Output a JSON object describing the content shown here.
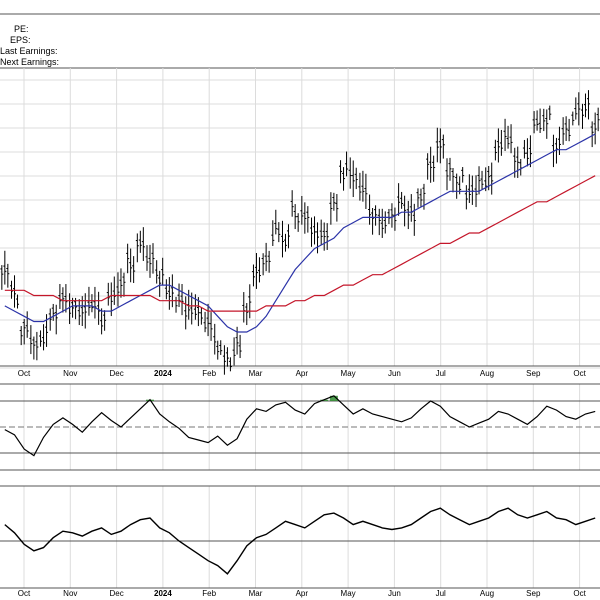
{
  "header": {
    "pe_label": "PE:",
    "eps_label": "EPS:",
    "last_earnings_label": "Last Earnings:",
    "next_earnings_label": "Next Earnings:"
  },
  "colors": {
    "price_bars": "#000000",
    "ma_short": "#2b33a8",
    "ma_long": "#c4162a",
    "grid": "#dcdcdc",
    "frame": "#555555",
    "osc_line": "#000000",
    "osc_overbought_fill": "#2e8b2e"
  },
  "chart_data": [
    {
      "type": "line",
      "panel": "price",
      "style": "ohlc bars with two moving averages",
      "x_tick_labels": [
        "Oct",
        "Nov",
        "Dec",
        "2024",
        "Feb",
        "Mar",
        "Apr",
        "May",
        "Jun",
        "Jul",
        "Aug",
        "Sep",
        "Oct"
      ],
      "ylim": [
        0,
        100
      ],
      "y_axis_labels_visible": false,
      "grid": true,
      "price_closes": [
        70,
        64,
        58,
        55,
        56,
        60,
        63,
        62,
        61,
        62,
        60,
        63,
        66,
        70,
        73,
        71,
        67,
        65,
        62,
        61,
        60,
        58,
        55,
        52,
        54,
        62,
        68,
        72,
        76,
        75,
        80,
        79,
        77,
        76,
        82,
        88,
        86,
        83,
        80,
        78,
        79,
        81,
        80,
        84,
        89,
        92,
        88,
        86,
        84,
        85,
        86,
        93,
        94,
        90,
        92,
        96,
        98,
        93,
        96,
        99,
        100,
        97
      ],
      "series": [
        {
          "name": "",
          "color": "#2b33a8",
          "values": [
            62,
            61,
            60,
            59,
            59,
            60,
            61,
            62,
            62,
            62,
            61,
            61,
            62,
            63,
            64,
            65,
            66,
            66,
            65,
            64,
            63,
            62,
            60,
            58,
            57,
            57,
            58,
            60,
            63,
            66,
            69,
            71,
            73,
            74,
            75,
            77,
            78,
            79,
            79,
            79,
            79,
            80,
            80,
            81,
            82,
            83,
            84,
            84,
            84,
            84,
            85,
            86,
            87,
            88,
            89,
            90,
            91,
            92,
            92,
            93,
            94,
            95
          ]
        },
        {
          "name": "",
          "color": "#c4162a",
          "values": [
            65,
            65,
            65,
            64,
            64,
            64,
            63,
            63,
            63,
            63,
            63,
            64,
            64,
            64,
            64,
            64,
            63,
            63,
            63,
            62,
            62,
            61,
            61,
            61,
            61,
            61,
            61,
            62,
            62,
            62,
            63,
            63,
            64,
            64,
            65,
            66,
            66,
            67,
            68,
            68,
            69,
            70,
            71,
            72,
            73,
            74,
            74,
            75,
            76,
            76,
            77,
            78,
            79,
            80,
            81,
            82,
            82,
            83,
            84,
            85,
            86,
            87
          ]
        }
      ]
    },
    {
      "type": "line",
      "panel": "oscillator",
      "ylim": [
        0,
        100
      ],
      "reference_lines": [
        30,
        50,
        70
      ],
      "series": [
        {
          "name": "",
          "color": "#000000",
          "values": [
            48,
            44,
            33,
            28,
            42,
            52,
            57,
            52,
            46,
            54,
            61,
            55,
            50,
            57,
            64,
            71,
            60,
            54,
            49,
            42,
            40,
            38,
            43,
            36,
            41,
            56,
            64,
            62,
            67,
            69,
            63,
            60,
            68,
            71,
            74,
            67,
            60,
            64,
            60,
            58,
            56,
            54,
            57,
            64,
            70,
            66,
            58,
            54,
            50,
            53,
            56,
            62,
            60,
            56,
            52,
            58,
            66,
            63,
            58,
            56,
            60,
            62
          ]
        }
      ]
    },
    {
      "type": "line",
      "panel": "momentum",
      "ylim": [
        0,
        100
      ],
      "reference_lines": [
        50
      ],
      "series": [
        {
          "name": "",
          "color": "#000000",
          "values": [
            60,
            55,
            48,
            44,
            46,
            52,
            56,
            55,
            53,
            56,
            58,
            54,
            56,
            60,
            63,
            64,
            58,
            55,
            50,
            46,
            42,
            38,
            35,
            30,
            38,
            47,
            52,
            54,
            58,
            62,
            60,
            58,
            62,
            66,
            67,
            64,
            60,
            62,
            60,
            58,
            57,
            58,
            60,
            64,
            68,
            70,
            66,
            63,
            60,
            62,
            64,
            68,
            70,
            66,
            64,
            66,
            68,
            64,
            63,
            60,
            62,
            64
          ]
        }
      ]
    }
  ]
}
